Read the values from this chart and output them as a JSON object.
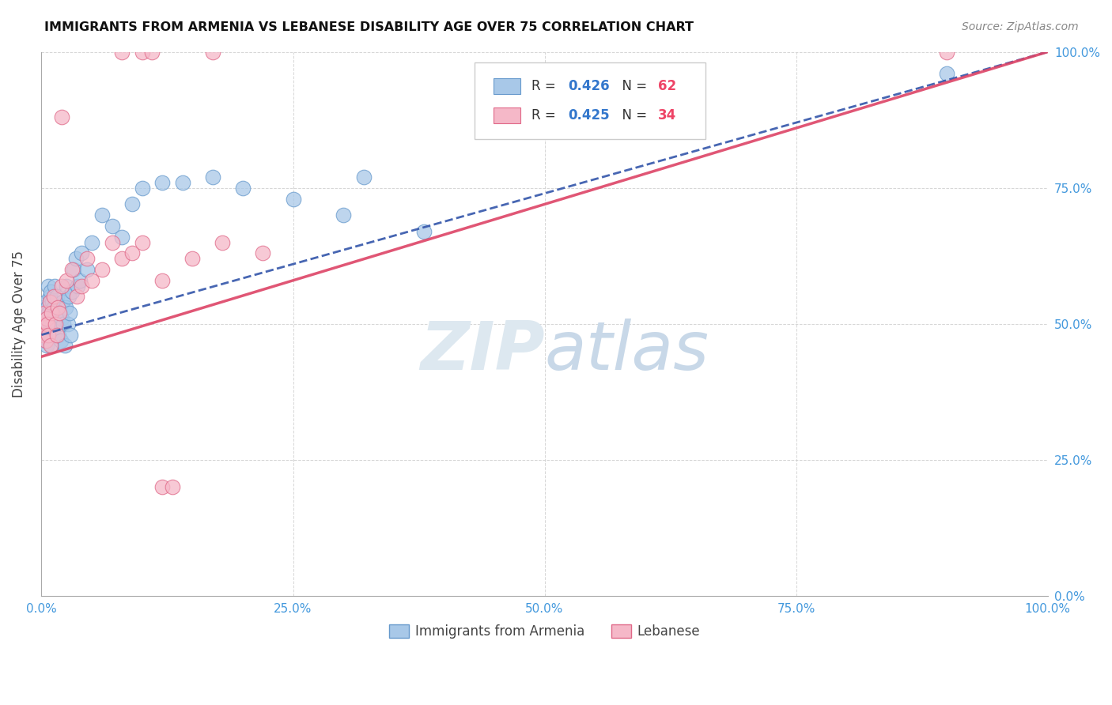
{
  "title": "IMMIGRANTS FROM ARMENIA VS LEBANESE DISABILITY AGE OVER 75 CORRELATION CHART",
  "source": "Source: ZipAtlas.com",
  "ylabel": "Disability Age Over 75",
  "xlim": [
    0.0,
    1.0
  ],
  "ylim": [
    0.0,
    1.0
  ],
  "xticks": [
    0.0,
    0.25,
    0.5,
    0.75,
    1.0
  ],
  "yticks": [
    0.0,
    0.25,
    0.5,
    0.75,
    1.0
  ],
  "xticklabels": [
    "0.0%",
    "25.0%",
    "50.0%",
    "75.0%",
    "100.0%"
  ],
  "yticklabels_right": [
    "0.0%",
    "25.0%",
    "50.0%",
    "75.0%",
    "100.0%"
  ],
  "background_color": "#ffffff",
  "grid_color": "#cccccc",
  "armenia_color": "#a8c8e8",
  "armenian_edge_color": "#6699cc",
  "lebanese_color": "#f5b8c8",
  "lebanese_edge_color": "#e06888",
  "armenia_R": 0.426,
  "armenia_N": 62,
  "lebanese_R": 0.425,
  "lebanese_N": 34,
  "legend_R_color": "#3377cc",
  "legend_N_color": "#ee4466",
  "armenia_line_color": "#3355aa",
  "lebanese_line_color": "#dd4466",
  "title_color": "#111111",
  "watermark_text": "ZIPatlas",
  "watermark_color": "#dde8f0",
  "tick_color": "#4499dd",
  "armenia_x": [
    0.001,
    0.002,
    0.002,
    0.003,
    0.003,
    0.004,
    0.004,
    0.005,
    0.005,
    0.006,
    0.006,
    0.007,
    0.007,
    0.008,
    0.008,
    0.009,
    0.009,
    0.01,
    0.01,
    0.011,
    0.011,
    0.012,
    0.012,
    0.013,
    0.014,
    0.015,
    0.015,
    0.016,
    0.017,
    0.018,
    0.019,
    0.02,
    0.021,
    0.022,
    0.023,
    0.024,
    0.025,
    0.026,
    0.027,
    0.028,
    0.029,
    0.03,
    0.032,
    0.034,
    0.036,
    0.038,
    0.04,
    0.045,
    0.05,
    0.06,
    0.07,
    0.08,
    0.09,
    0.1,
    0.12,
    0.14,
    0.17,
    0.2,
    0.25,
    0.3,
    0.38,
    0.9
  ],
  "armenia_y": [
    0.5,
    0.53,
    0.48,
    0.52,
    0.47,
    0.51,
    0.54,
    0.5,
    0.46,
    0.53,
    0.48,
    0.52,
    0.57,
    0.5,
    0.55,
    0.48,
    0.56,
    0.52,
    0.46,
    0.54,
    0.5,
    0.53,
    0.48,
    0.57,
    0.52,
    0.55,
    0.5,
    0.53,
    0.48,
    0.52,
    0.47,
    0.51,
    0.54,
    0.5,
    0.46,
    0.53,
    0.57,
    0.5,
    0.55,
    0.52,
    0.48,
    0.56,
    0.6,
    0.62,
    0.57,
    0.58,
    0.63,
    0.6,
    0.65,
    0.7,
    0.68,
    0.66,
    0.72,
    0.75,
    0.76,
    0.76,
    0.77,
    0.75,
    0.73,
    0.7,
    0.67,
    0.96
  ],
  "lebanese_x": [
    0.001,
    0.002,
    0.003,
    0.004,
    0.005,
    0.006,
    0.007,
    0.008,
    0.009,
    0.01,
    0.012,
    0.014,
    0.015,
    0.016,
    0.018,
    0.02,
    0.025,
    0.03,
    0.035,
    0.04,
    0.045,
    0.05,
    0.06,
    0.07,
    0.08,
    0.09,
    0.1,
    0.12,
    0.15,
    0.18,
    0.22,
    0.12,
    0.13,
    0.9
  ],
  "lebanese_y": [
    0.5,
    0.48,
    0.52,
    0.47,
    0.51,
    0.5,
    0.48,
    0.54,
    0.46,
    0.52,
    0.55,
    0.5,
    0.48,
    0.53,
    0.52,
    0.57,
    0.58,
    0.6,
    0.55,
    0.57,
    0.62,
    0.58,
    0.6,
    0.65,
    0.62,
    0.63,
    0.65,
    0.58,
    0.62,
    0.65,
    0.63,
    0.2,
    0.2,
    1.0
  ],
  "armenia_line_x0": 0.0,
  "armenia_line_y0": 0.48,
  "armenia_line_x1": 1.0,
  "armenia_line_y1": 1.0,
  "lebanese_line_x0": 0.0,
  "lebanese_line_y0": 0.44,
  "lebanese_line_x1": 1.0,
  "lebanese_line_y1": 1.0
}
